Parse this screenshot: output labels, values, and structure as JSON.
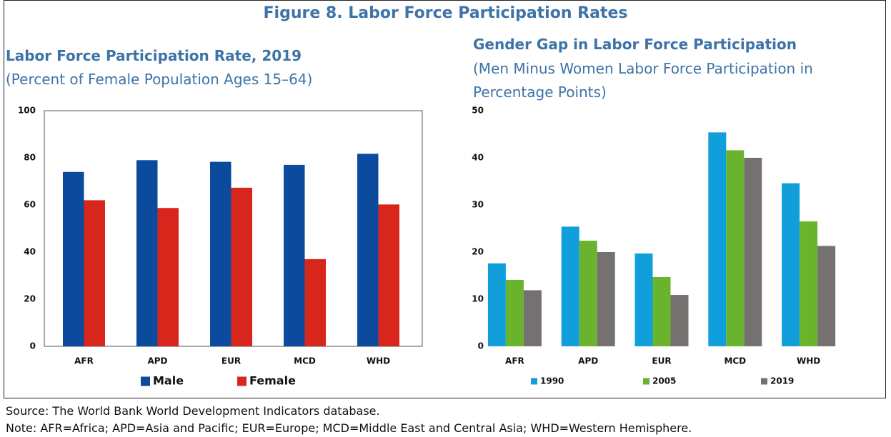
{
  "figure_title": "Figure 8. Labor Force Participation Rates",
  "source": "Source: The World Bank World Development Indicators database.",
  "note": "Note: AFR=Africa; APD=Asia and Pacific; EUR=Europe; MCD=Middle East and Central Asia; WHD=Western Hemisphere.",
  "chart_data": [
    {
      "type": "bar",
      "title": "Labor Force Participation Rate, 2019",
      "subtitle": "(Percent of Female Population Ages 15–64)",
      "categories": [
        "AFR",
        "APD",
        "EUR",
        "MCD",
        "WHD"
      ],
      "series": [
        {
          "name": "Male",
          "color": "#0b4a9c",
          "values": [
            74,
            79,
            78.3,
            77,
            81.7
          ]
        },
        {
          "name": "Female",
          "color": "#d9261c",
          "values": [
            62,
            58.7,
            67.3,
            37,
            60.2
          ]
        }
      ],
      "ylim": [
        0,
        100
      ],
      "yticks": [
        0,
        20,
        40,
        60,
        80,
        100
      ]
    },
    {
      "type": "bar",
      "title": "Gender Gap in Labor Force Participation",
      "subtitle": "(Men Minus Women Labor Force Participation in Percentage Points)",
      "categories": [
        "AFR",
        "APD",
        "EUR",
        "MCD",
        "WHD"
      ],
      "series": [
        {
          "name": "1990",
          "color": "#109fdb",
          "values": [
            17.6,
            25.4,
            19.7,
            45.4,
            34.6
          ]
        },
        {
          "name": "2005",
          "color": "#6ab42d",
          "values": [
            14.1,
            22.4,
            14.7,
            41.6,
            26.5
          ]
        },
        {
          "name": "2019",
          "color": "#767171",
          "values": [
            11.9,
            20,
            10.9,
            40,
            21.3
          ]
        }
      ],
      "ylim": [
        0,
        50
      ],
      "yticks": [
        0,
        10,
        20,
        30,
        40,
        50
      ]
    }
  ]
}
